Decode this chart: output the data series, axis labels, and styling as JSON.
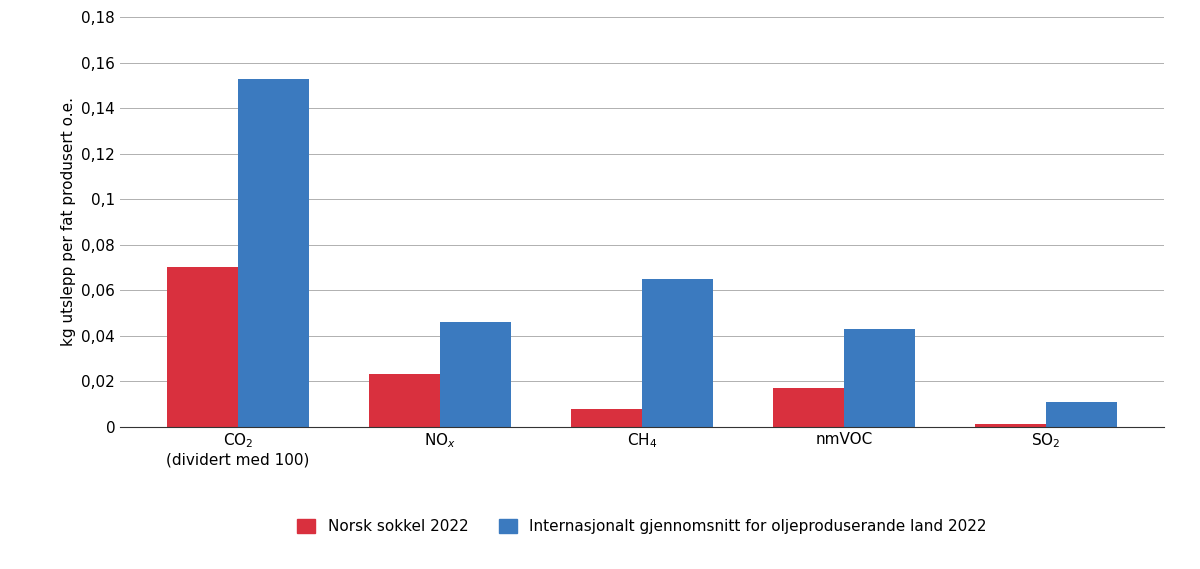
{
  "categories_line1": [
    "CO$_2$\n(dividert med 100)",
    "NO$_x$",
    "CH$_4$",
    "nmVOC",
    "SO$_2$"
  ],
  "norsk_sokkel": [
    0.07,
    0.023,
    0.008,
    0.017,
    0.001
  ],
  "internasjonalt": [
    0.153,
    0.046,
    0.065,
    0.043,
    0.011
  ],
  "norsk_color": "#d9303e",
  "internasjonal_color": "#3b7abf",
  "ylabel": "kg utslepp per fat produsert o.e.",
  "ylim": [
    0,
    0.18
  ],
  "yticks": [
    0,
    0.02,
    0.04,
    0.06,
    0.08,
    0.1,
    0.12,
    0.14,
    0.16,
    0.18
  ],
  "legend_norsk": "Norsk sokkel 2022",
  "legend_internasjonal": "Internasjonalt gjennomsnitt for oljeproduserande land 2022",
  "bar_width": 0.35,
  "background_color": "#ffffff",
  "grid_color": "#b0b0b0",
  "tick_label_fontsize": 11,
  "ylabel_fontsize": 11,
  "legend_fontsize": 11
}
